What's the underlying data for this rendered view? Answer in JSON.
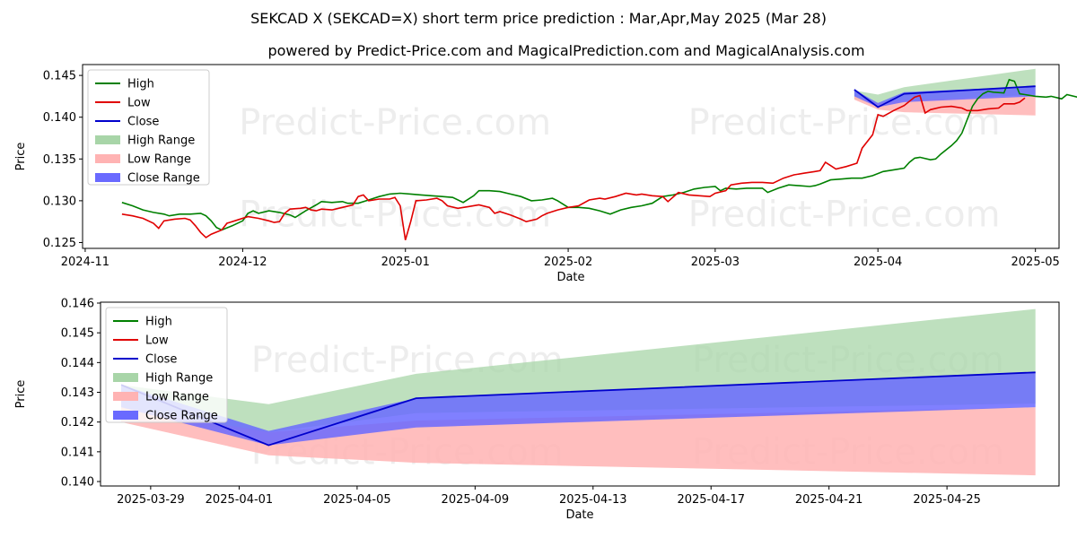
{
  "title": "SEKCAD X (SEKCAD=X) short term price prediction : Mar,Apr,May 2025 (Mar 28)",
  "subtitle": "powered by Predict-Price.com and MagicalPrediction.com and MagicalAnalysis.com",
  "watermark": "Predict-Price.com",
  "colors": {
    "high": "#008000",
    "low": "#e00000",
    "close": "#0000cc",
    "high_range": "#a8d5a8",
    "low_range": "#ffb3b3",
    "close_range": "#6a6aff"
  },
  "chart_data": [
    {
      "type": "line",
      "xlabel": "Date",
      "ylabel": "Price",
      "x_ticks": [
        "2024-11",
        "2024-12",
        "2025-01",
        "2025-02",
        "2025-03",
        "2025-04",
        "2025-05"
      ],
      "x_tick_days": [
        0,
        30,
        61,
        92,
        120,
        151,
        181
      ],
      "y_ticks": [
        "0.125",
        "0.130",
        "0.135",
        "0.140",
        "0.145"
      ],
      "ylim": [
        0.1243,
        0.1463
      ],
      "xlim_days": [
        -0.5,
        185.5
      ],
      "legend": [
        "High",
        "Low",
        "Close",
        "High Range",
        "Low Range",
        "Close Range"
      ],
      "high_series": [
        [
          7,
          0.1298
        ],
        [
          9,
          0.1294
        ],
        [
          11,
          0.1289
        ],
        [
          13,
          0.1286
        ],
        [
          15,
          0.1284
        ],
        [
          16,
          0.1282
        ],
        [
          18,
          0.1284
        ],
        [
          20,
          0.1284
        ],
        [
          22,
          0.1285
        ],
        [
          23,
          0.1282
        ],
        [
          24,
          0.1276
        ],
        [
          25,
          0.1268
        ],
        [
          26,
          0.1265
        ],
        [
          28,
          0.127
        ],
        [
          30,
          0.1276
        ],
        [
          31,
          0.1285
        ],
        [
          32,
          0.1288
        ],
        [
          33,
          0.1285
        ],
        [
          35,
          0.1288
        ],
        [
          37,
          0.1286
        ],
        [
          39,
          0.1283
        ],
        [
          40,
          0.128
        ],
        [
          42,
          0.1288
        ],
        [
          44,
          0.1295
        ],
        [
          45,
          0.1299
        ],
        [
          47,
          0.1298
        ],
        [
          49,
          0.1299
        ],
        [
          50,
          0.1297
        ],
        [
          52,
          0.1297
        ],
        [
          54,
          0.1301
        ],
        [
          56,
          0.1305
        ],
        [
          58,
          0.1308
        ],
        [
          60,
          0.1309
        ],
        [
          62,
          0.1308
        ],
        [
          64,
          0.1307
        ],
        [
          66,
          0.1306
        ],
        [
          68,
          0.1305
        ],
        [
          70,
          0.1304
        ],
        [
          72,
          0.1298
        ],
        [
          74,
          0.1306
        ],
        [
          75,
          0.1312
        ],
        [
          77,
          0.1312
        ],
        [
          79,
          0.1311
        ],
        [
          81,
          0.1308
        ],
        [
          83,
          0.1305
        ],
        [
          85,
          0.13
        ],
        [
          87,
          0.1301
        ],
        [
          89,
          0.1303
        ],
        [
          90,
          0.13
        ],
        [
          92,
          0.1292
        ],
        [
          94,
          0.1292
        ],
        [
          96,
          0.1291
        ],
        [
          98,
          0.1288
        ],
        [
          100,
          0.1284
        ],
        [
          102,
          0.1289
        ],
        [
          104,
          0.1292
        ],
        [
          106,
          0.1294
        ],
        [
          108,
          0.1297
        ],
        [
          110,
          0.1305
        ],
        [
          112,
          0.1307
        ],
        [
          114,
          0.131
        ],
        [
          116,
          0.1314
        ],
        [
          118,
          0.1316
        ],
        [
          120,
          0.1317
        ],
        [
          121,
          0.1312
        ],
        [
          122,
          0.1315
        ],
        [
          124,
          0.1314
        ],
        [
          126,
          0.1315
        ],
        [
          128,
          0.1315
        ],
        [
          129,
          0.1315
        ],
        [
          130,
          0.131
        ],
        [
          132,
          0.1315
        ],
        [
          134,
          0.1319
        ],
        [
          136,
          0.1318
        ],
        [
          138,
          0.1317
        ],
        [
          139,
          0.1318
        ],
        [
          140,
          0.132
        ],
        [
          142,
          0.1325
        ],
        [
          144,
          0.1326
        ],
        [
          146,
          0.1327
        ],
        [
          148,
          0.1327
        ],
        [
          150,
          0.133
        ],
        [
          152,
          0.1335
        ],
        [
          154,
          0.1337
        ],
        [
          156,
          0.1339
        ],
        [
          157,
          0.1346
        ],
        [
          158,
          0.1351
        ],
        [
          159,
          0.1352
        ],
        [
          161,
          0.1349
        ],
        [
          162,
          0.135
        ],
        [
          163,
          0.1356
        ],
        [
          165,
          0.1366
        ],
        [
          166,
          0.1372
        ],
        [
          167,
          0.1381
        ],
        [
          168,
          0.1397
        ],
        [
          169,
          0.1413
        ],
        [
          170,
          0.1422
        ],
        [
          171,
          0.1428
        ],
        [
          172,
          0.1431
        ],
        [
          173,
          0.143
        ],
        [
          175,
          0.1429
        ],
        [
          176,
          0.1445
        ],
        [
          177,
          0.1443
        ],
        [
          178,
          0.1428
        ],
        [
          179,
          0.1427
        ],
        [
          181,
          0.1425
        ],
        [
          183,
          0.1424
        ],
        [
          184,
          0.1425
        ],
        [
          186,
          0.1422
        ],
        [
          187,
          0.1427
        ],
        [
          189,
          0.1424
        ],
        [
          190,
          0.1423
        ],
        [
          191,
          0.1435
        ],
        [
          192,
          0.1424
        ],
        [
          193,
          0.1428
        ],
        [
          194,
          0.1431
        ]
      ],
      "low_series": [
        [
          7,
          0.1284
        ],
        [
          9,
          0.1282
        ],
        [
          11,
          0.1279
        ],
        [
          13,
          0.1273
        ],
        [
          14,
          0.1267
        ],
        [
          15,
          0.1276
        ],
        [
          17,
          0.1278
        ],
        [
          19,
          0.1279
        ],
        [
          20,
          0.1277
        ],
        [
          21,
          0.127
        ],
        [
          22,
          0.1262
        ],
        [
          23,
          0.1256
        ],
        [
          24,
          0.126
        ],
        [
          26,
          0.1265
        ],
        [
          27,
          0.1273
        ],
        [
          29,
          0.1277
        ],
        [
          31,
          0.1281
        ],
        [
          33,
          0.1279
        ],
        [
          35,
          0.1276
        ],
        [
          36,
          0.1274
        ],
        [
          37,
          0.1275
        ],
        [
          38,
          0.1285
        ],
        [
          39,
          0.129
        ],
        [
          41,
          0.1291
        ],
        [
          42,
          0.1292
        ],
        [
          43,
          0.1289
        ],
        [
          44,
          0.1288
        ],
        [
          45,
          0.129
        ],
        [
          47,
          0.1289
        ],
        [
          49,
          0.1292
        ],
        [
          51,
          0.1295
        ],
        [
          52,
          0.1305
        ],
        [
          53,
          0.1307
        ],
        [
          54,
          0.13
        ],
        [
          56,
          0.1302
        ],
        [
          58,
          0.1302
        ],
        [
          59,
          0.1304
        ],
        [
          60,
          0.1294
        ],
        [
          61,
          0.1253
        ],
        [
          62,
          0.1275
        ],
        [
          63,
          0.13
        ],
        [
          65,
          0.1301
        ],
        [
          67,
          0.1303
        ],
        [
          68,
          0.13
        ],
        [
          69,
          0.1294
        ],
        [
          71,
          0.1291
        ],
        [
          73,
          0.1293
        ],
        [
          75,
          0.1295
        ],
        [
          77,
          0.1292
        ],
        [
          78,
          0.1285
        ],
        [
          79,
          0.1287
        ],
        [
          81,
          0.1283
        ],
        [
          83,
          0.1278
        ],
        [
          84,
          0.1275
        ],
        [
          86,
          0.1278
        ],
        [
          87,
          0.1282
        ],
        [
          88,
          0.1285
        ],
        [
          90,
          0.1289
        ],
        [
          92,
          0.1292
        ],
        [
          94,
          0.1294
        ],
        [
          96,
          0.1301
        ],
        [
          98,
          0.1303
        ],
        [
          99,
          0.1302
        ],
        [
          101,
          0.1305
        ],
        [
          103,
          0.1309
        ],
        [
          104,
          0.1308
        ],
        [
          105,
          0.1307
        ],
        [
          106,
          0.1308
        ],
        [
          108,
          0.1306
        ],
        [
          110,
          0.1305
        ],
        [
          111,
          0.1299
        ],
        [
          113,
          0.131
        ],
        [
          115,
          0.1307
        ],
        [
          117,
          0.1306
        ],
        [
          119,
          0.1305
        ],
        [
          120,
          0.1309
        ],
        [
          122,
          0.1312
        ],
        [
          123,
          0.1319
        ],
        [
          125,
          0.1321
        ],
        [
          127,
          0.1322
        ],
        [
          129,
          0.1322
        ],
        [
          131,
          0.1321
        ],
        [
          133,
          0.1327
        ],
        [
          135,
          0.1331
        ],
        [
          137,
          0.1333
        ],
        [
          139,
          0.1335
        ],
        [
          140,
          0.1336
        ],
        [
          141,
          0.1346
        ],
        [
          142,
          0.1342
        ],
        [
          143,
          0.1338
        ],
        [
          145,
          0.1341
        ],
        [
          147,
          0.1345
        ],
        [
          148,
          0.1363
        ],
        [
          150,
          0.1379
        ],
        [
          151,
          0.1403
        ],
        [
          152,
          0.1401
        ],
        [
          154,
          0.1408
        ],
        [
          156,
          0.1414
        ],
        [
          158,
          0.1424
        ],
        [
          159,
          0.1426
        ],
        [
          160,
          0.1405
        ],
        [
          161,
          0.1409
        ],
        [
          163,
          0.1412
        ],
        [
          165,
          0.1413
        ],
        [
          167,
          0.1411
        ],
        [
          168,
          0.1408
        ],
        [
          170,
          0.1408
        ],
        [
          172,
          0.141
        ],
        [
          174,
          0.1411
        ],
        [
          175,
          0.1416
        ],
        [
          177,
          0.1416
        ],
        [
          178,
          0.1418
        ],
        [
          179,
          0.1423
        ]
      ],
      "range_start_day": 146.5,
      "forecast_days": [
        146.5,
        151,
        156,
        181
      ],
      "forecast_close": [
        0.1433,
        0.1412,
        0.1428,
        0.1437
      ],
      "high_range_upper": [
        0.1432,
        0.1427,
        0.1436,
        0.1458
      ],
      "high_range_lower": [
        0.1422,
        0.1415,
        0.142,
        0.1427
      ],
      "low_range_upper": [
        0.1425,
        0.1417,
        0.1421,
        0.1425
      ],
      "low_range_lower": [
        0.1421,
        0.1409,
        0.1406,
        0.1402
      ],
      "close_range_upper": [
        0.1433,
        0.1417,
        0.143,
        0.1437
      ],
      "close_range_lower": [
        0.1425,
        0.1412,
        0.1418,
        0.1425
      ]
    },
    {
      "type": "line",
      "xlabel": "Date",
      "ylabel": "Price",
      "x_ticks": [
        "2025-03-29",
        "2025-04-01",
        "2025-04-05",
        "2025-04-09",
        "2025-04-13",
        "2025-04-17",
        "2025-04-21",
        "2025-04-25"
      ],
      "x_tick_days": [
        1,
        4,
        8,
        12,
        16,
        20,
        24,
        28
      ],
      "y_ticks": [
        "0.140",
        "0.141",
        "0.142",
        "0.143",
        "0.144",
        "0.145",
        "0.146"
      ],
      "ylim": [
        0.13985,
        0.14603
      ],
      "xlim_days": [
        -0.7,
        31.8
      ],
      "legend": [
        "High",
        "Low",
        "Close",
        "High Range",
        "Low Range",
        "Close Range"
      ],
      "range_days": [
        0,
        5,
        10,
        31
      ],
      "close": [
        0.14325,
        0.14122,
        0.1428,
        0.14367
      ],
      "high_range_upper": [
        0.14325,
        0.1426,
        0.14362,
        0.1458
      ],
      "high_range_lower": [
        0.14215,
        0.14166,
        0.1423,
        0.14262
      ],
      "low_range_upper": [
        0.1425,
        0.14166,
        0.14205,
        0.1425
      ],
      "low_range_lower": [
        0.142,
        0.14088,
        0.14063,
        0.14021
      ],
      "close_range_upper": [
        0.14325,
        0.1417,
        0.1428,
        0.14367
      ],
      "close_range_lower": [
        0.1425,
        0.14122,
        0.14182,
        0.1425
      ]
    }
  ]
}
